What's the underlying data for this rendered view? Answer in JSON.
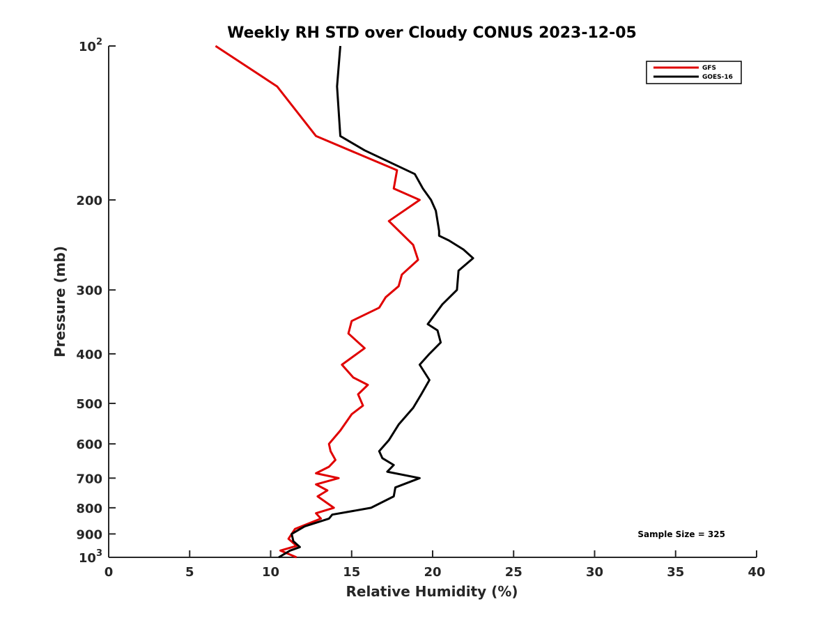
{
  "chart_data": {
    "type": "line",
    "title": "Weekly RH STD over Cloudy CONUS 2023-12-05",
    "xlabel": "Relative Humidity (%)",
    "ylabel": "Pressure (mb)",
    "xlim": [
      0,
      40
    ],
    "ylim": [
      100,
      1000
    ],
    "y_scale": "log",
    "y_reversed": true,
    "grid": false,
    "legend_position": "top-right",
    "x_ticks": [
      "0",
      "5",
      "10",
      "15",
      "20",
      "25",
      "30",
      "35",
      "40"
    ],
    "x_tick_values": [
      0,
      5,
      10,
      15,
      20,
      25,
      30,
      35,
      40
    ],
    "y_ticks": [
      {
        "value": 100,
        "base": "10",
        "exp": "2"
      },
      {
        "value": 200,
        "label": "200"
      },
      {
        "value": 300,
        "label": "300"
      },
      {
        "value": 400,
        "label": "400"
      },
      {
        "value": 500,
        "label": "500"
      },
      {
        "value": 600,
        "label": "600"
      },
      {
        "value": 700,
        "label": "700"
      },
      {
        "value": 800,
        "label": "800"
      },
      {
        "value": 900,
        "label": "900"
      },
      {
        "value": 1000,
        "base": "10",
        "exp": "3"
      }
    ],
    "annotation": "Sample Size = 325",
    "series": [
      {
        "name": "GFS",
        "color": "#e00000",
        "x": [
          6.6,
          10.4,
          12.8,
          17.8,
          17.6,
          19.2,
          17.3,
          18.8,
          19.1,
          18.1,
          17.9,
          17.1,
          16.7,
          15.0,
          14.8,
          15.8,
          14.4,
          15.1,
          16.0,
          15.4,
          15.7,
          15.0,
          14.3,
          13.6,
          13.7,
          14.0,
          13.6,
          12.8,
          14.2,
          12.8,
          13.5,
          12.9,
          13.9,
          12.8,
          13.1,
          11.5,
          11.1,
          11.6,
          10.6,
          11.6
        ],
        "y": [
          100,
          120,
          150,
          175,
          190,
          200,
          220,
          245,
          262,
          280,
          295,
          310,
          325,
          345,
          365,
          390,
          420,
          445,
          460,
          480,
          505,
          525,
          565,
          600,
          620,
          645,
          665,
          685,
          700,
          720,
          740,
          760,
          800,
          820,
          840,
          880,
          920,
          950,
          970,
          1000
        ]
      },
      {
        "name": "GOES-16",
        "color": "#000000",
        "x": [
          14.3,
          14.1,
          14.3,
          15.8,
          18.9,
          19.4,
          19.9,
          20.2,
          20.3,
          20.4,
          20.4,
          21.0,
          21.9,
          22.5,
          21.6,
          21.5,
          20.6,
          19.7,
          20.3,
          20.5,
          19.8,
          19.2,
          19.8,
          19.3,
          18.8,
          17.9,
          17.3,
          16.7,
          16.9,
          17.6,
          17.2,
          19.2,
          17.7,
          17.6,
          16.2,
          13.8,
          13.6,
          12.1,
          11.3,
          11.4,
          11.8,
          11.2,
          10.5
        ],
        "y": [
          100,
          120,
          150,
          160,
          178,
          190,
          200,
          210,
          220,
          230,
          235,
          240,
          250,
          260,
          275,
          300,
          320,
          350,
          360,
          380,
          400,
          420,
          450,
          480,
          510,
          550,
          590,
          620,
          640,
          660,
          680,
          700,
          730,
          760,
          800,
          825,
          840,
          870,
          900,
          930,
          955,
          970,
          1000
        ]
      }
    ]
  }
}
